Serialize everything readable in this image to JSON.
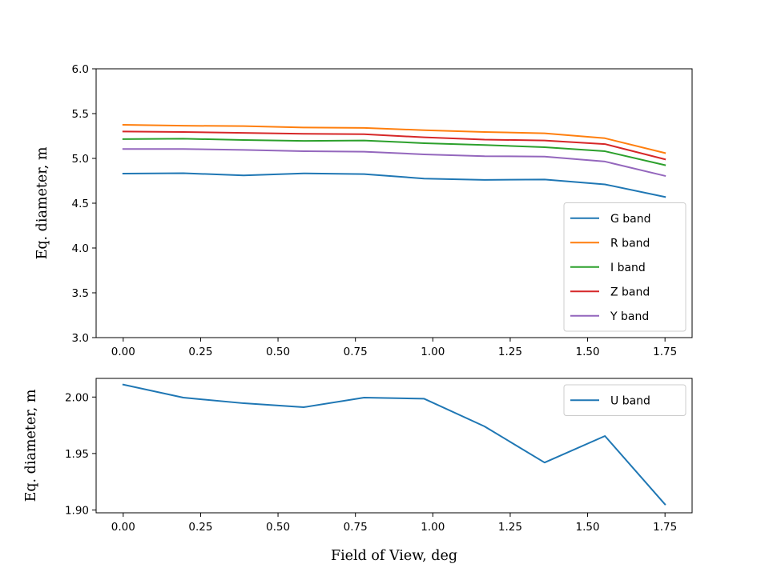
{
  "chart_data": [
    {
      "type": "line",
      "ylabel": "Eq. diameter, m",
      "xlim": [
        -0.0875,
        1.8375
      ],
      "ylim": [
        3.0,
        6.0
      ],
      "xticks": [
        "0.00",
        "0.25",
        "0.50",
        "0.75",
        "1.00",
        "1.25",
        "1.50",
        "1.75"
      ],
      "yticks": [
        "3.0",
        "3.5",
        "4.0",
        "4.5",
        "5.0",
        "5.5",
        "6.0"
      ],
      "legend_position": "lower-right",
      "x": [
        0.0,
        0.194,
        0.389,
        0.583,
        0.778,
        0.972,
        1.167,
        1.361,
        1.556,
        1.75
      ],
      "series": [
        {
          "name": "G band",
          "color": "#1f77b4",
          "values": [
            4.83,
            4.835,
            4.81,
            4.833,
            4.825,
            4.775,
            4.76,
            4.765,
            4.71,
            4.57
          ]
        },
        {
          "name": "R band",
          "color": "#ff7f0e",
          "values": [
            5.375,
            5.365,
            5.36,
            5.345,
            5.34,
            5.315,
            5.295,
            5.28,
            5.225,
            5.06
          ]
        },
        {
          "name": "I band",
          "color": "#2ca02c",
          "values": [
            5.215,
            5.22,
            5.205,
            5.195,
            5.2,
            5.17,
            5.15,
            5.125,
            5.08,
            4.925
          ]
        },
        {
          "name": "Z band",
          "color": "#d62728",
          "values": [
            5.3,
            5.295,
            5.285,
            5.275,
            5.27,
            5.235,
            5.21,
            5.2,
            5.16,
            4.99
          ]
        },
        {
          "name": "Y band",
          "color": "#9467bd",
          "values": [
            5.105,
            5.105,
            5.095,
            5.08,
            5.075,
            5.045,
            5.025,
            5.02,
            4.965,
            4.805
          ]
        }
      ]
    },
    {
      "type": "line",
      "xlabel": "Field of View, deg",
      "ylabel": "Eq. diameter, m",
      "xlim": [
        -0.0875,
        1.8375
      ],
      "ylim": [
        1.8975,
        2.0165
      ],
      "xticks": [
        "0.00",
        "0.25",
        "0.50",
        "0.75",
        "1.00",
        "1.25",
        "1.50",
        "1.75"
      ],
      "yticks": [
        "1.90",
        "1.95",
        "2.00"
      ],
      "legend_position": "upper-right",
      "x": [
        0.0,
        0.194,
        0.389,
        0.583,
        0.778,
        0.972,
        1.167,
        1.361,
        1.556,
        1.75
      ],
      "series": [
        {
          "name": "U band",
          "color": "#1f77b4",
          "values": [
            2.011,
            1.9995,
            1.9945,
            1.991,
            1.9995,
            1.9985,
            1.974,
            1.942,
            1.9655,
            1.905
          ]
        }
      ]
    }
  ]
}
